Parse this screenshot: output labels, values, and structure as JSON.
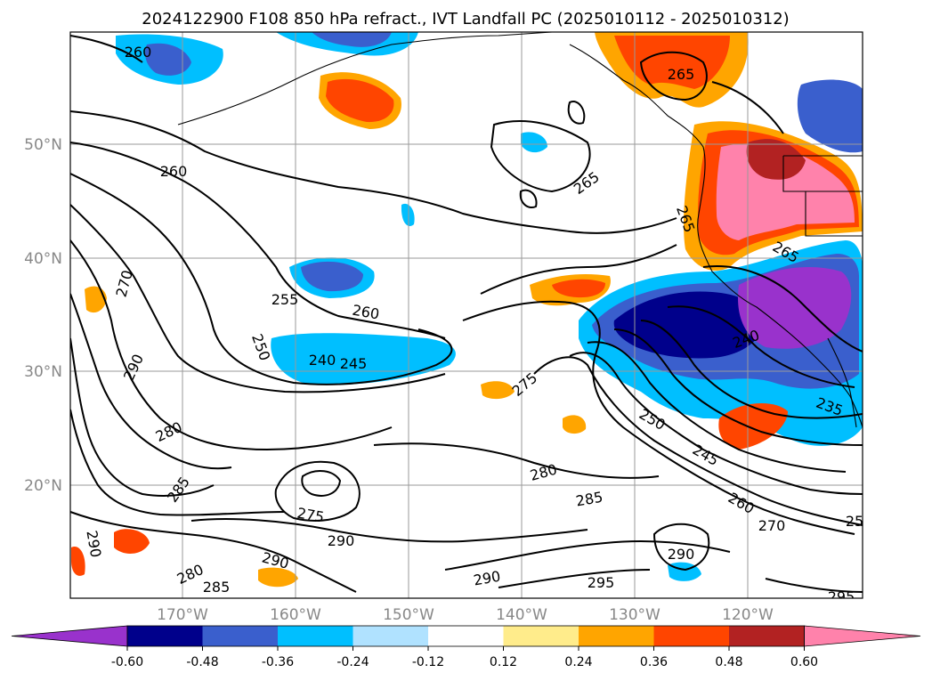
{
  "title": "2024122900 F108 850 hPa refract., IVT Landfall PC (2025010112 - 2025010312)",
  "lat_labels": [
    "50°N",
    "40°N",
    "30°N",
    "20°N"
  ],
  "lon_labels": [
    "170°W",
    "160°W",
    "150°W",
    "140°W",
    "130°W",
    "120°W"
  ],
  "colorbar": {
    "ticks": [
      "-0.60",
      "-0.48",
      "-0.36",
      "-0.24",
      "-0.12",
      "0.12",
      "0.24",
      "0.36",
      "0.48",
      "0.60"
    ],
    "colors": [
      "#9932cc",
      "#00008b",
      "#3a5fcd",
      "#00bfff",
      "#b0e2ff",
      "#ffffff",
      "#ffec8b",
      "#ffa500",
      "#ff4500",
      "#b22222",
      "#ff82ab"
    ]
  },
  "contour_labels": [
    "260",
    "260",
    "265",
    "265",
    "265",
    "265",
    "270",
    "290",
    "255",
    "260",
    "250",
    "240",
    "245",
    "240",
    "275",
    "280",
    "250",
    "245",
    "260",
    "270",
    "25",
    "235",
    "285",
    "275",
    "290",
    "280",
    "285",
    "280",
    "285",
    "290",
    "290",
    "290",
    "290",
    "295",
    "295"
  ],
  "icons": {
    "colorbar_left_arrow": "triangle-left-icon",
    "colorbar_right_arrow": "triangle-right-icon"
  }
}
